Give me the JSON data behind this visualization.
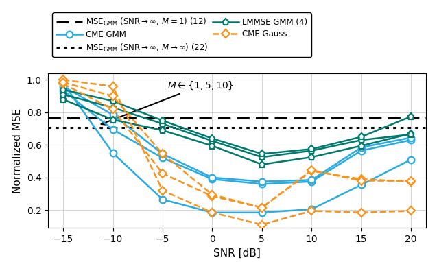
{
  "snr": [
    -15,
    -10,
    -5,
    0,
    5,
    10,
    15,
    20
  ],
  "cme_gmm_M1": [
    0.98,
    0.55,
    0.265,
    0.185,
    0.185,
    0.205,
    0.355,
    0.51
  ],
  "cme_gmm_M5": [
    0.935,
    0.695,
    0.52,
    0.39,
    0.36,
    0.375,
    0.565,
    0.63
  ],
  "cme_gmm_M10": [
    0.96,
    0.785,
    0.545,
    0.4,
    0.375,
    0.385,
    0.585,
    0.645
  ],
  "lmmse_gmm_M1": [
    0.88,
    0.755,
    0.69,
    0.595,
    0.48,
    0.525,
    0.595,
    0.67
  ],
  "lmmse_gmm_M5": [
    0.91,
    0.83,
    0.73,
    0.625,
    0.525,
    0.565,
    0.63,
    0.665
  ],
  "lmmse_gmm_M10": [
    0.94,
    0.87,
    0.75,
    0.64,
    0.545,
    0.575,
    0.65,
    0.775
  ],
  "cme_gauss_M1": [
    1.0,
    0.96,
    0.32,
    0.185,
    0.11,
    0.195,
    0.185,
    0.195
  ],
  "cme_gauss_M5": [
    0.975,
    0.82,
    0.425,
    0.285,
    0.215,
    0.44,
    0.39,
    0.375
  ],
  "cme_gauss_M10": [
    0.985,
    0.9,
    0.545,
    0.295,
    0.215,
    0.445,
    0.38,
    0.38
  ],
  "mse_gmm_inf_M1": 0.765,
  "mse_gmm_inf_Minf": 0.706,
  "color_cme_gmm": "#29ABE2",
  "color_lmmse_gmm": "#007A6E",
  "color_cme_gauss": "#F7941D",
  "xlabel": "SNR [dB]",
  "ylabel": "Normalized MSE",
  "annotation": "$M\\in\\{1,5,10\\}$",
  "ylim": [
    0.09,
    1.04
  ],
  "xlim": [
    -16.5,
    21.5
  ]
}
